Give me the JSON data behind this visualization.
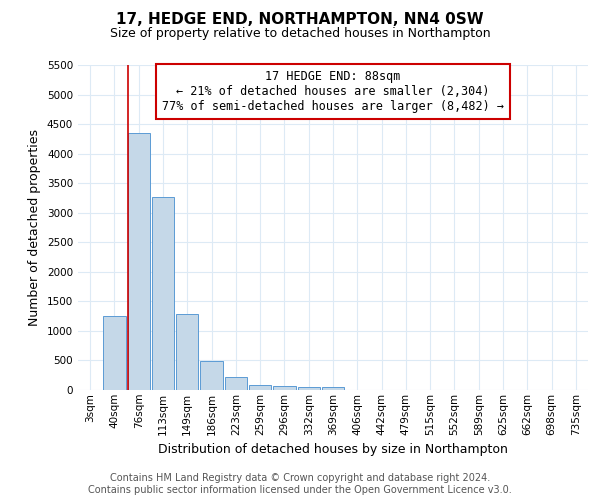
{
  "title": "17, HEDGE END, NORTHAMPTON, NN4 0SW",
  "subtitle": "Size of property relative to detached houses in Northampton",
  "xlabel": "Distribution of detached houses by size in Northampton",
  "ylabel": "Number of detached properties",
  "footer_line1": "Contains HM Land Registry data © Crown copyright and database right 2024.",
  "footer_line2": "Contains public sector information licensed under the Open Government Licence v3.0.",
  "annotation_line1": "17 HEDGE END: 88sqm",
  "annotation_line2": "← 21% of detached houses are smaller (2,304)",
  "annotation_line3": "77% of semi-detached houses are larger (8,482) →",
  "bar_labels": [
    "3sqm",
    "40sqm",
    "76sqm",
    "113sqm",
    "149sqm",
    "186sqm",
    "223sqm",
    "259sqm",
    "296sqm",
    "332sqm",
    "369sqm",
    "406sqm",
    "442sqm",
    "479sqm",
    "515sqm",
    "552sqm",
    "589sqm",
    "625sqm",
    "662sqm",
    "698sqm",
    "735sqm"
  ],
  "bar_values": [
    0,
    1250,
    4350,
    3270,
    1280,
    490,
    215,
    90,
    65,
    55,
    55,
    0,
    0,
    0,
    0,
    0,
    0,
    0,
    0,
    0,
    0
  ],
  "bar_color": "#c5d8e8",
  "bar_edgecolor": "#5b9bd5",
  "red_line_index": 2,
  "ylim": [
    0,
    5500
  ],
  "yticks": [
    0,
    500,
    1000,
    1500,
    2000,
    2500,
    3000,
    3500,
    4000,
    4500,
    5000,
    5500
  ],
  "background_color": "#ffffff",
  "grid_color": "#ddeaf5",
  "annotation_box_color": "#ffffff",
  "annotation_box_edgecolor": "#cc0000",
  "red_line_color": "#cc0000",
  "title_fontsize": 11,
  "subtitle_fontsize": 9,
  "axis_label_fontsize": 9,
  "tick_fontsize": 7.5,
  "annotation_fontsize": 8.5,
  "footer_fontsize": 7
}
